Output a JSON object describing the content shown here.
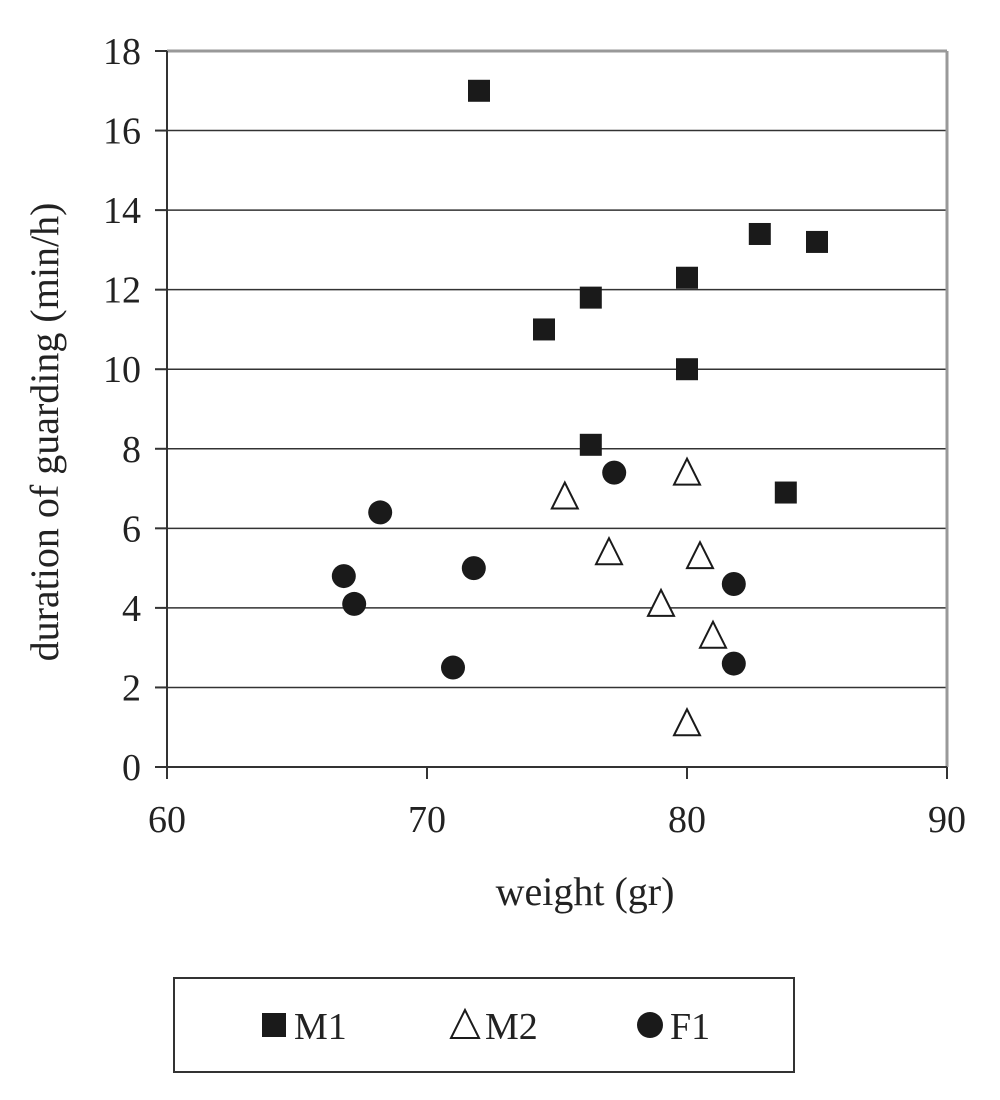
{
  "chart_data": {
    "type": "scatter",
    "xlabel": "weight (gr)",
    "ylabel": "duration of guarding (min/h)",
    "xlim": [
      60,
      90
    ],
    "ylim": [
      0,
      18
    ],
    "x_ticks": [
      60,
      70,
      80,
      90
    ],
    "y_ticks": [
      0,
      2,
      4,
      6,
      8,
      10,
      12,
      14,
      16,
      18
    ],
    "grid": "horizontal",
    "legend_position": "bottom",
    "series": [
      {
        "name": "M1",
        "marker": "square-filled",
        "color": "#1a1a1a",
        "points": [
          [
            72.0,
            17.0
          ],
          [
            74.5,
            11.0
          ],
          [
            76.3,
            11.8
          ],
          [
            76.3,
            8.1
          ],
          [
            80.0,
            12.3
          ],
          [
            80.0,
            10.0
          ],
          [
            82.8,
            13.4
          ],
          [
            83.8,
            6.9
          ],
          [
            85.0,
            13.2
          ]
        ]
      },
      {
        "name": "M2",
        "marker": "triangle-open",
        "color": "#1a1a1a",
        "points": [
          [
            75.3,
            6.8
          ],
          [
            77.0,
            5.4
          ],
          [
            79.0,
            4.1
          ],
          [
            80.0,
            7.4
          ],
          [
            80.5,
            5.3
          ],
          [
            81.0,
            3.3
          ],
          [
            80.0,
            1.1
          ]
        ]
      },
      {
        "name": "F1",
        "marker": "circle-filled",
        "color": "#1a1a1a",
        "points": [
          [
            66.8,
            4.8
          ],
          [
            67.2,
            4.1
          ],
          [
            68.2,
            6.4
          ],
          [
            71.0,
            2.5
          ],
          [
            71.8,
            5.0
          ],
          [
            77.2,
            7.4
          ],
          [
            81.8,
            4.6
          ],
          [
            81.8,
            2.6
          ]
        ]
      }
    ]
  }
}
